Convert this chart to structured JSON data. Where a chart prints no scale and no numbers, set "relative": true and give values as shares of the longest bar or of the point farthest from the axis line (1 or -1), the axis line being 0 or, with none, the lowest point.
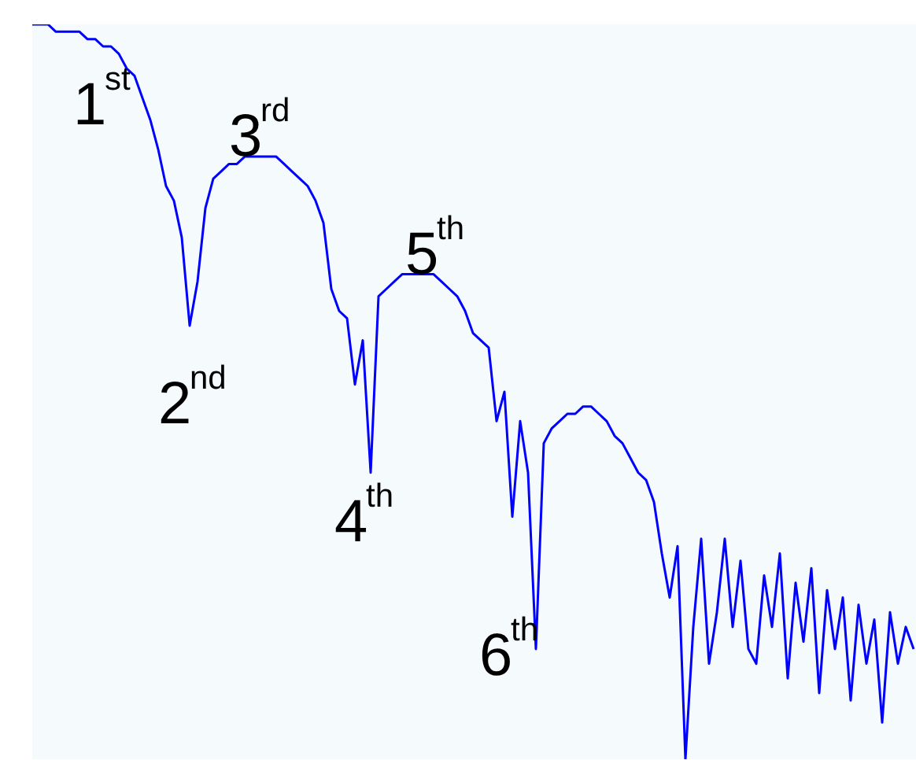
{
  "chart_data": {
    "type": "line",
    "relative": true,
    "grid": false,
    "tick_labels": false,
    "marker": "none",
    "line_style": "solid",
    "categories": [
      null,
      null,
      null,
      null,
      null,
      null,
      null,
      null,
      null,
      null,
      null,
      null,
      null,
      null,
      null,
      null,
      null,
      null,
      null,
      null,
      null,
      null,
      null,
      null,
      null,
      null,
      null,
      null,
      null,
      null,
      null,
      null,
      null,
      null,
      null,
      null,
      null,
      null,
      null,
      null,
      null,
      null,
      null,
      null,
      null,
      null,
      null,
      null,
      null,
      null,
      null,
      null,
      null,
      null,
      null,
      null,
      null,
      null,
      null,
      null,
      null,
      null,
      null,
      null,
      null,
      null,
      null,
      null,
      null,
      null,
      null,
      null,
      null,
      null,
      null,
      null,
      null,
      null,
      null,
      null,
      null,
      null,
      null,
      null,
      null,
      null,
      null,
      null,
      null,
      null,
      null,
      null,
      null,
      null,
      null,
      null,
      null,
      null,
      null,
      null,
      null,
      null,
      null,
      null,
      null,
      null,
      null,
      null,
      null,
      null,
      null,
      null,
      null
    ],
    "series": [
      {
        "color": "#0000ff",
        "values": [
          1.0,
          1.0,
          1.0,
          0.99,
          0.99,
          0.99,
          0.99,
          0.98,
          0.98,
          0.97,
          0.97,
          0.96,
          0.94,
          0.93,
          0.9,
          0.87,
          0.83,
          0.78,
          0.76,
          0.71,
          0.59,
          0.65,
          0.75,
          0.79,
          0.8,
          0.81,
          0.81,
          0.82,
          0.82,
          0.82,
          0.82,
          0.82,
          0.81,
          0.8,
          0.79,
          0.78,
          0.76,
          0.73,
          0.64,
          0.61,
          0.6,
          0.51,
          0.57,
          0.39,
          0.63,
          0.64,
          0.65,
          0.66,
          0.66,
          0.66,
          0.66,
          0.66,
          0.65,
          0.64,
          0.63,
          0.61,
          0.58,
          0.57,
          0.56,
          0.46,
          0.5,
          0.33,
          0.46,
          0.39,
          0.15,
          0.43,
          0.45,
          0.46,
          0.47,
          0.47,
          0.48,
          0.48,
          0.47,
          0.46,
          0.44,
          0.43,
          0.41,
          0.39,
          0.38,
          0.35,
          0.28,
          0.22,
          0.29,
          0.0,
          0.18,
          0.3,
          0.13,
          0.2,
          0.3,
          0.18,
          0.27,
          0.15,
          0.13,
          0.25,
          0.18,
          0.28,
          0.11,
          0.24,
          0.16,
          0.26,
          0.09,
          0.23,
          0.15,
          0.22,
          0.08,
          0.21,
          0.13,
          0.19,
          0.05,
          0.2,
          0.13,
          0.18,
          0.15
        ]
      }
    ],
    "annotations": [
      "1$^{st}$",
      "3$^{rd}$",
      "5$^{th}$",
      "2$^{nd}$",
      "4$^{th}$",
      "6$^{th}$"
    ]
  }
}
